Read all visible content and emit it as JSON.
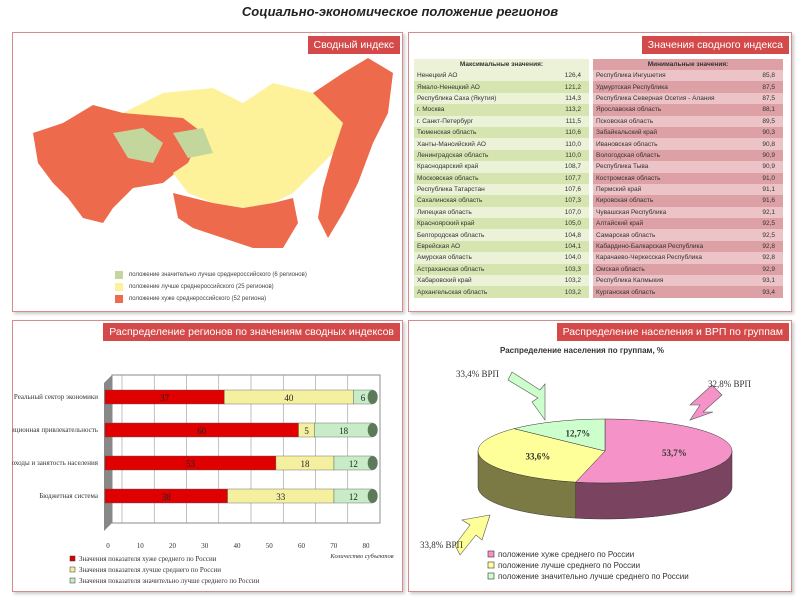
{
  "title": "Социально-экономическое положение регионов",
  "panels": {
    "summary": "Сводный индекс",
    "values": "Значения сводного индекса",
    "distribution": "Распределение регионов по значениям сводных индексов",
    "population": "Распределение населения и ВРП по группам"
  },
  "map_legend": [
    "положение значительно лучше среднероссийского (6 регионов)",
    "положение лучше среднероссийского (25 регионов)",
    "положение хуже среднероссийского (52 региона)"
  ],
  "colors": {
    "green": "#c3d69b",
    "yellow": "#fdf29a",
    "red": "#ee6a4c",
    "badge": "#d44a4a"
  },
  "max_table": {
    "header": "Максимальные значения:",
    "rows": [
      [
        "Ненецкий АО",
        "126,4"
      ],
      [
        "Ямало-Ненецкий АО",
        "121,2"
      ],
      [
        "Республика Саха (Якутия)",
        "114,3"
      ],
      [
        "г. Москва",
        "113,2"
      ],
      [
        "г. Санкт-Петербург",
        "111,5"
      ],
      [
        "Тюменская область",
        "110,6"
      ],
      [
        "Ханты-Мансийский АО",
        "110,0"
      ],
      [
        "Ленинградская область",
        "110,0"
      ],
      [
        "Краснодарский край",
        "108,7"
      ],
      [
        "Московская область",
        "107,7"
      ],
      [
        "Республика Татарстан",
        "107,6"
      ],
      [
        "Сахалинская область",
        "107,3"
      ],
      [
        "Липецкая область",
        "107,0"
      ],
      [
        "Красноярский край",
        "105,0"
      ],
      [
        "Белгородская область",
        "104,8"
      ],
      [
        "Еврейская АО",
        "104,1"
      ],
      [
        "Амурская область",
        "104,0"
      ],
      [
        "Астраханская область",
        "103,3"
      ],
      [
        "Хабаровский край",
        "103,2"
      ],
      [
        "Архангельская область",
        "103,2"
      ]
    ]
  },
  "min_table": {
    "header": "Минимальные значения:",
    "rows": [
      [
        "Республика Ингушетия",
        "85,8"
      ],
      [
        "Удмуртская Республика",
        "87,5"
      ],
      [
        "Республика Северная Осетия - Алания",
        "87,5"
      ],
      [
        "Ярославская область",
        "88,1"
      ],
      [
        "Псковская область",
        "89,5"
      ],
      [
        "Забайкальский край",
        "90,3"
      ],
      [
        "Ивановская область",
        "90,8"
      ],
      [
        "Вологодская область",
        "90,9"
      ],
      [
        "Республика Тыва",
        "90,9"
      ],
      [
        "Костромская область",
        "91,0"
      ],
      [
        "Пермский край",
        "91,1"
      ],
      [
        "Кировская область",
        "91,6"
      ],
      [
        "Чувашская Республика",
        "92,1"
      ],
      [
        "Алтайский край",
        "92,5"
      ],
      [
        "Самарская область",
        "92,5"
      ],
      [
        "Кабардино-Балкарская Республика",
        "92,8"
      ],
      [
        "Карачаево-Черкесская Республика",
        "92,8"
      ],
      [
        "Омская область",
        "92,9"
      ],
      [
        "Республика Калмыкия",
        "93,1"
      ],
      [
        "Курганская область",
        "93,4"
      ]
    ]
  },
  "chart_data": [
    {
      "type": "bar",
      "stacked": true,
      "categories": [
        "Реальный сектор экономики",
        "Инвестиционная привлекательность",
        "Доходы и занятость населения",
        "Бюджетная система"
      ],
      "series": [
        {
          "name": "Значения показателя хуже среднего по России",
          "color": "#e00000",
          "values": [
            37,
            60,
            53,
            38
          ]
        },
        {
          "name": "Значения показателя лучше среднего по России",
          "color": "#f5f0a0",
          "values": [
            40,
            5,
            18,
            33
          ]
        },
        {
          "name": "Значения показателя значительно лучше среднего по России",
          "color": "#c8ecc8",
          "values": [
            6,
            18,
            12,
            12
          ]
        }
      ],
      "xticks": [
        "0",
        "10",
        "20",
        "30",
        "40",
        "50",
        "60",
        "70",
        "80"
      ],
      "xlim": [
        0,
        80
      ],
      "xlabel": "Количество субъектов"
    },
    {
      "type": "pie",
      "title": "Распределение населения по группам, %",
      "slices": [
        {
          "name": "положение хуже среднего по России",
          "value": 53.7,
          "label": "53,7%",
          "color": "#f593c8",
          "side": "#7a4460",
          "annotation": "32,8% ВРП"
        },
        {
          "name": "положение лучше среднего по России",
          "value": 33.6,
          "label": "33,6%",
          "color": "#ffff99",
          "side": "#7c7a44",
          "annotation": "33,8% ВРП"
        },
        {
          "name": "положение значительно лучше среднего по России",
          "value": 12.7,
          "label": "12,7%",
          "color": "#ccffcc",
          "side": "#5c7a5c",
          "annotation": "33,4% ВРП"
        }
      ]
    }
  ]
}
